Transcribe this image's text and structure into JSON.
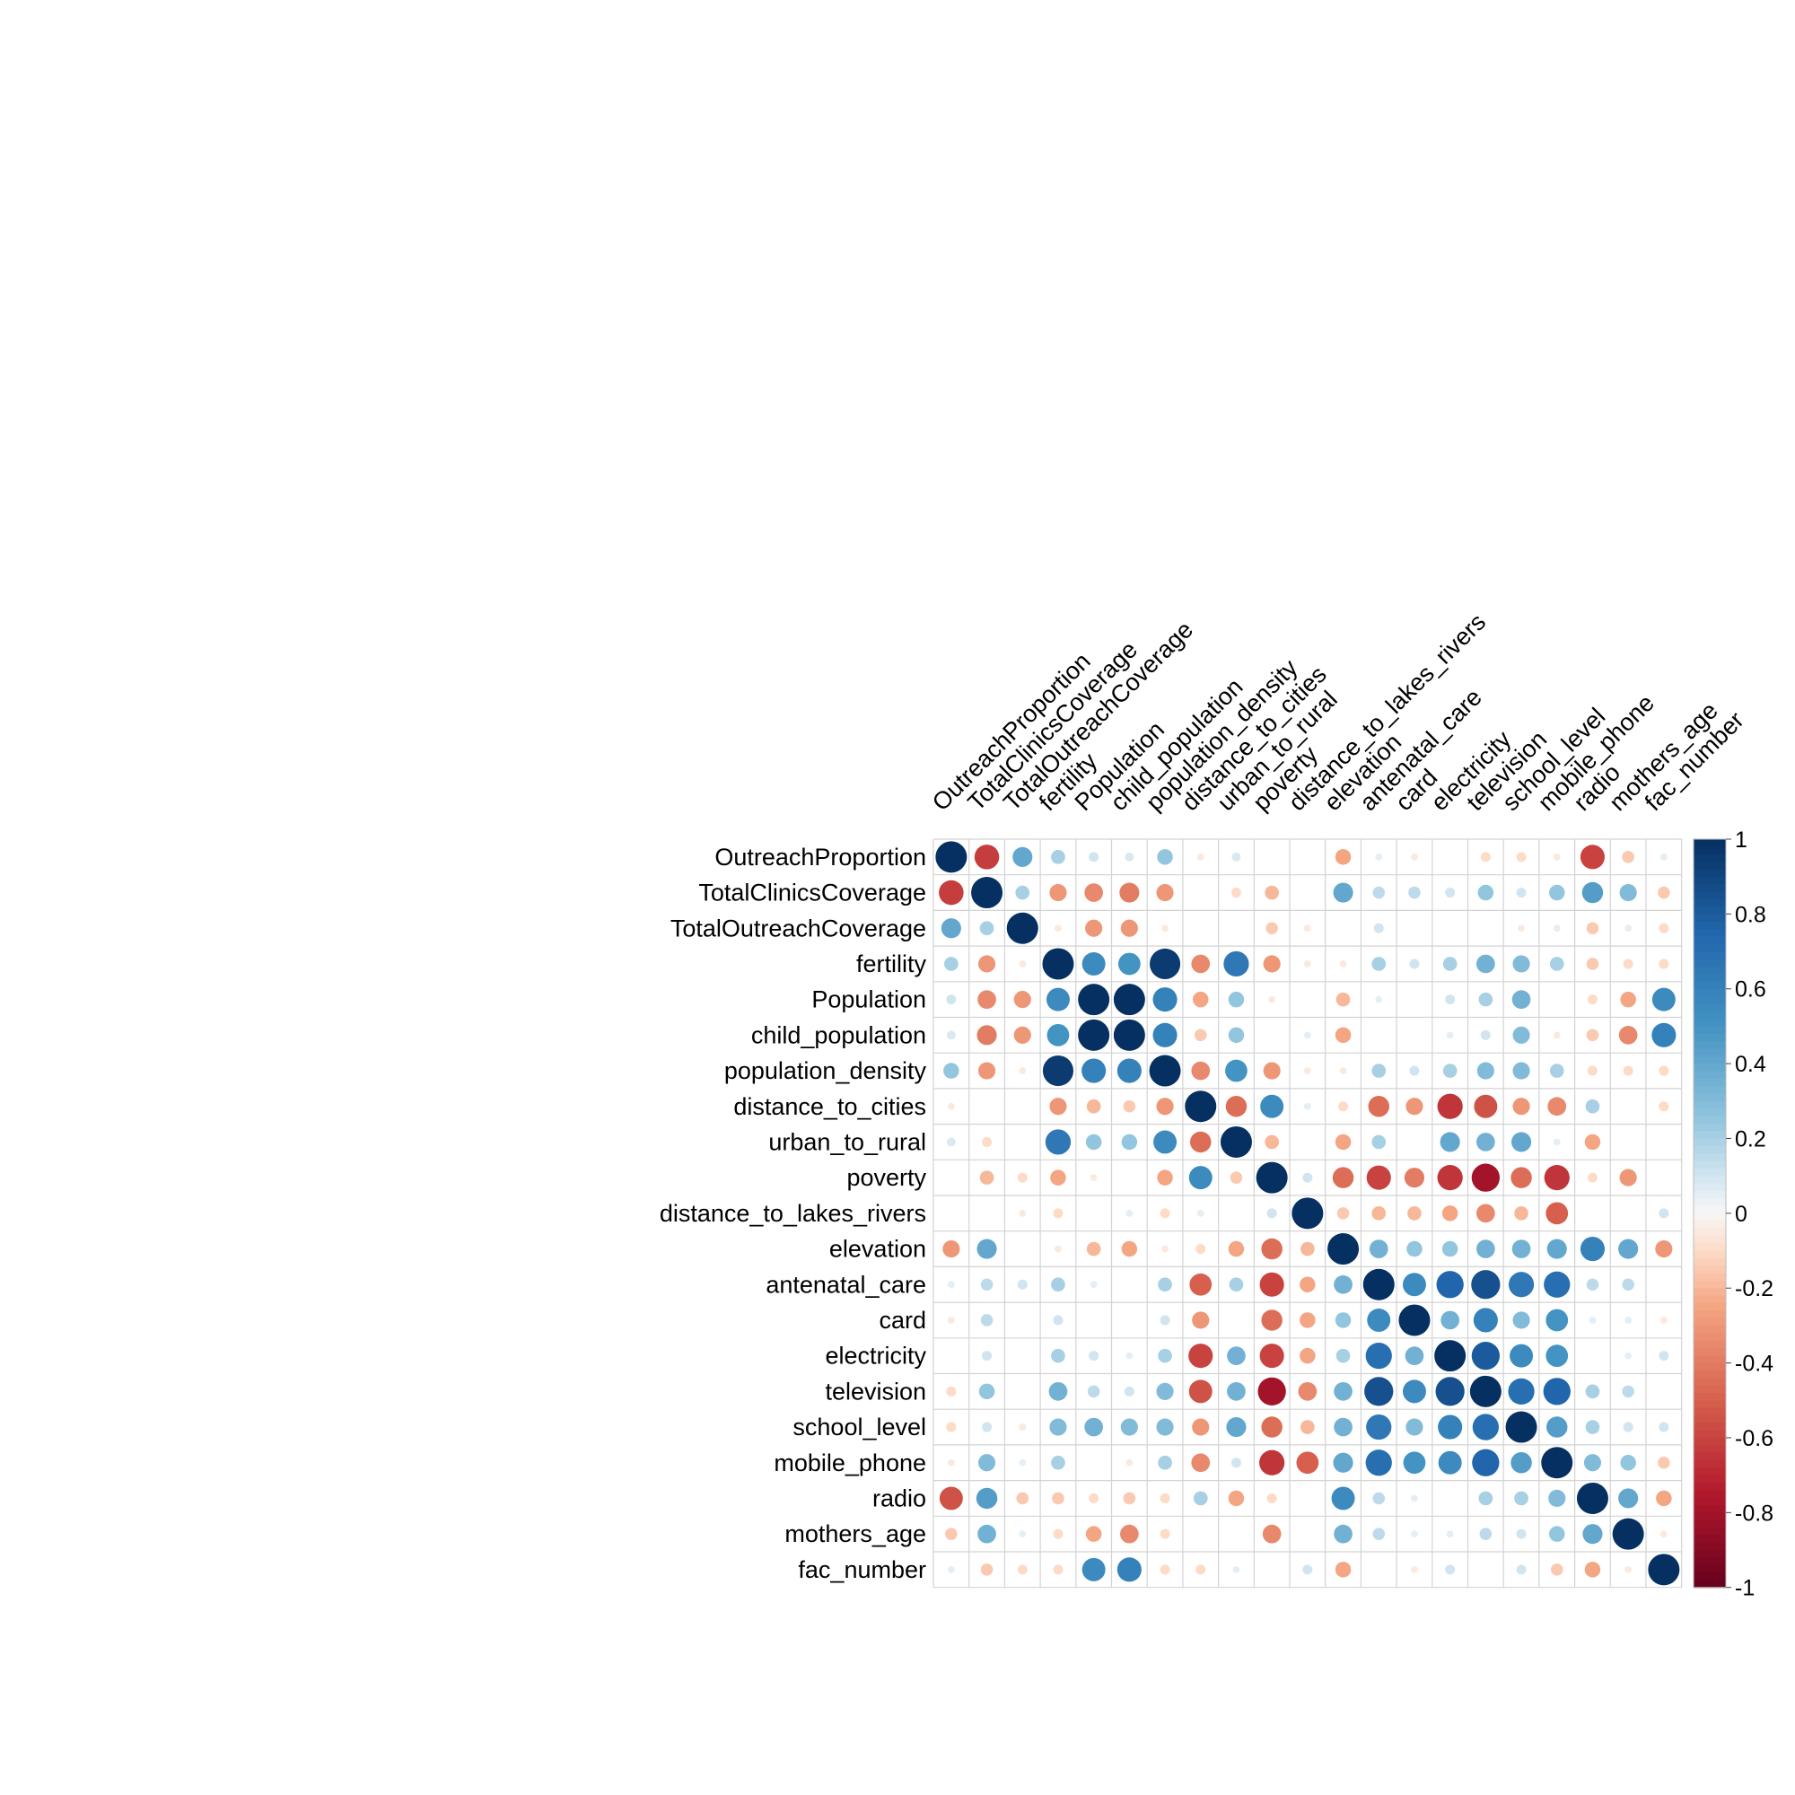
{
  "chart_data": {
    "type": "heatmap",
    "title": "",
    "variables": [
      "OutreachProportion",
      "TotalClinicsCoverage",
      "TotalOutreachCoverage",
      "fertility",
      "Population",
      "child_population",
      "population_density",
      "distance_to_cities",
      "urban_to_rural",
      "poverty",
      "distance_to_lakes_rivers",
      "elevation",
      "antenatal_care",
      "card",
      "electricity",
      "television",
      "school_level",
      "mobile_phone",
      "radio",
      "mothers_age",
      "fac_number"
    ],
    "matrix": [
      [
        1.0,
        -0.62,
        0.4,
        0.2,
        0.1,
        0.08,
        0.25,
        -0.05,
        0.08,
        0.0,
        0.0,
        -0.25,
        0.05,
        -0.05,
        0.0,
        -0.1,
        -0.1,
        -0.05,
        -0.6,
        -0.15,
        0.05
      ],
      [
        -0.62,
        1.0,
        0.2,
        -0.3,
        -0.35,
        -0.4,
        -0.3,
        0.0,
        -0.1,
        -0.2,
        0.0,
        0.4,
        0.15,
        0.15,
        0.1,
        0.25,
        0.1,
        0.25,
        0.45,
        0.3,
        -0.15
      ],
      [
        0.4,
        0.2,
        1.0,
        -0.05,
        -0.3,
        -0.3,
        -0.05,
        0.0,
        0.0,
        -0.15,
        -0.05,
        0.0,
        0.1,
        0.0,
        0.0,
        0.0,
        -0.05,
        0.05,
        -0.15,
        0.05,
        -0.1
      ],
      [
        0.2,
        -0.3,
        -0.05,
        1.0,
        0.55,
        0.5,
        0.95,
        -0.35,
        0.65,
        -0.3,
        -0.05,
        -0.05,
        0.2,
        0.1,
        0.2,
        0.35,
        0.3,
        0.2,
        -0.15,
        -0.1,
        -0.1
      ],
      [
        0.1,
        -0.35,
        -0.3,
        0.55,
        1.0,
        1.0,
        0.6,
        -0.25,
        0.25,
        -0.05,
        0.0,
        -0.2,
        0.05,
        0.0,
        0.1,
        0.2,
        0.35,
        0.0,
        -0.1,
        -0.25,
        0.55
      ],
      [
        0.08,
        -0.4,
        -0.3,
        0.5,
        1.0,
        1.0,
        0.6,
        -0.15,
        0.25,
        0.0,
        0.05,
        -0.25,
        0.0,
        0.0,
        0.05,
        0.1,
        0.3,
        -0.05,
        -0.15,
        -0.35,
        0.6
      ],
      [
        0.25,
        -0.3,
        -0.05,
        0.95,
        0.6,
        0.6,
        1.0,
        -0.35,
        0.5,
        -0.3,
        -0.05,
        -0.05,
        0.2,
        0.1,
        0.2,
        0.3,
        0.3,
        0.2,
        -0.1,
        -0.1,
        -0.1
      ],
      [
        -0.05,
        0.0,
        0.0,
        -0.3,
        -0.2,
        -0.15,
        -0.3,
        1.0,
        -0.45,
        0.55,
        0.05,
        -0.1,
        -0.45,
        -0.3,
        -0.65,
        -0.55,
        -0.3,
        -0.35,
        0.2,
        0.0,
        -0.1
      ],
      [
        0.08,
        -0.1,
        0.0,
        0.65,
        0.25,
        0.25,
        0.55,
        -0.45,
        1.0,
        -0.2,
        0.0,
        -0.25,
        0.2,
        0.0,
        0.4,
        0.35,
        0.4,
        0.05,
        -0.25,
        0.0,
        0.0
      ],
      [
        0.0,
        -0.2,
        -0.1,
        -0.25,
        -0.05,
        0.0,
        -0.25,
        0.55,
        -0.15,
        1.0,
        0.1,
        -0.45,
        -0.6,
        -0.4,
        -0.65,
        -0.8,
        -0.45,
        -0.65,
        -0.1,
        -0.3,
        0.0
      ],
      [
        0.0,
        0.0,
        -0.05,
        -0.1,
        0.0,
        0.05,
        -0.1,
        0.05,
        0.0,
        0.1,
        1.0,
        -0.15,
        -0.2,
        -0.2,
        -0.25,
        -0.35,
        -0.2,
        -0.5,
        0.0,
        0.0,
        0.1
      ],
      [
        -0.3,
        0.4,
        0.0,
        -0.05,
        -0.2,
        -0.25,
        -0.05,
        -0.1,
        -0.25,
        -0.45,
        -0.2,
        1.0,
        0.35,
        0.25,
        0.25,
        0.35,
        0.35,
        0.4,
        0.6,
        0.4,
        -0.3
      ],
      [
        0.05,
        0.15,
        0.1,
        0.2,
        0.05,
        0.0,
        0.2,
        -0.5,
        0.2,
        -0.6,
        -0.25,
        0.35,
        1.0,
        0.55,
        0.75,
        0.85,
        0.65,
        0.7,
        0.15,
        0.15,
        0.0
      ],
      [
        -0.05,
        0.15,
        0.0,
        0.1,
        0.0,
        0.0,
        0.1,
        -0.3,
        0.0,
        -0.45,
        -0.25,
        0.25,
        0.55,
        1.0,
        0.35,
        0.6,
        0.3,
        0.5,
        0.05,
        0.05,
        -0.05
      ],
      [
        0.0,
        0.1,
        0.0,
        0.2,
        0.1,
        0.05,
        0.2,
        -0.6,
        0.35,
        -0.6,
        -0.25,
        0.2,
        0.7,
        0.35,
        1.0,
        0.8,
        0.55,
        0.5,
        0.0,
        0.05,
        0.1
      ],
      [
        -0.1,
        0.25,
        0.0,
        0.35,
        0.15,
        0.1,
        0.3,
        -0.55,
        0.35,
        -0.8,
        -0.35,
        0.35,
        0.85,
        0.55,
        0.85,
        1.0,
        0.7,
        0.75,
        0.2,
        0.15,
        0.0
      ],
      [
        -0.1,
        0.1,
        -0.05,
        0.3,
        0.35,
        0.3,
        0.3,
        -0.3,
        0.4,
        -0.45,
        -0.2,
        0.35,
        0.65,
        0.3,
        0.6,
        0.7,
        1.0,
        0.45,
        0.2,
        0.1,
        0.1
      ],
      [
        -0.05,
        0.3,
        0.05,
        0.2,
        0.0,
        -0.05,
        0.2,
        -0.35,
        0.1,
        -0.65,
        -0.5,
        0.4,
        0.7,
        0.5,
        0.55,
        0.75,
        0.45,
        1.0,
        0.3,
        0.25,
        -0.15
      ],
      [
        -0.55,
        0.45,
        -0.15,
        -0.15,
        -0.1,
        -0.15,
        -0.1,
        0.2,
        -0.25,
        -0.1,
        0.0,
        0.55,
        0.15,
        0.05,
        0.0,
        0.2,
        0.2,
        0.3,
        1.0,
        0.4,
        -0.25
      ],
      [
        -0.15,
        0.35,
        0.05,
        -0.1,
        -0.25,
        -0.35,
        -0.1,
        0.0,
        0.0,
        -0.35,
        0.0,
        0.35,
        0.15,
        0.05,
        0.05,
        0.15,
        0.1,
        0.25,
        0.4,
        1.0,
        -0.05
      ],
      [
        0.05,
        -0.15,
        -0.1,
        -0.1,
        0.55,
        0.6,
        -0.1,
        -0.1,
        0.05,
        0.0,
        0.1,
        -0.25,
        0.0,
        -0.05,
        0.1,
        0.0,
        0.1,
        -0.15,
        -0.25,
        -0.05,
        1.0
      ]
    ],
    "colorbar": {
      "ticks": [
        "1",
        "0.8",
        "0.6",
        "0.4",
        "0.2",
        "0",
        "-0.2",
        "-0.4",
        "-0.6",
        "-0.8",
        "-1"
      ],
      "range": [
        -1,
        1
      ]
    },
    "grid": true,
    "legend": "right",
    "colors": {
      "negative_strong": "#67001F",
      "neutral": "#F7F7F7",
      "positive_strong": "#053061",
      "grid": "#D3D3D3"
    }
  }
}
